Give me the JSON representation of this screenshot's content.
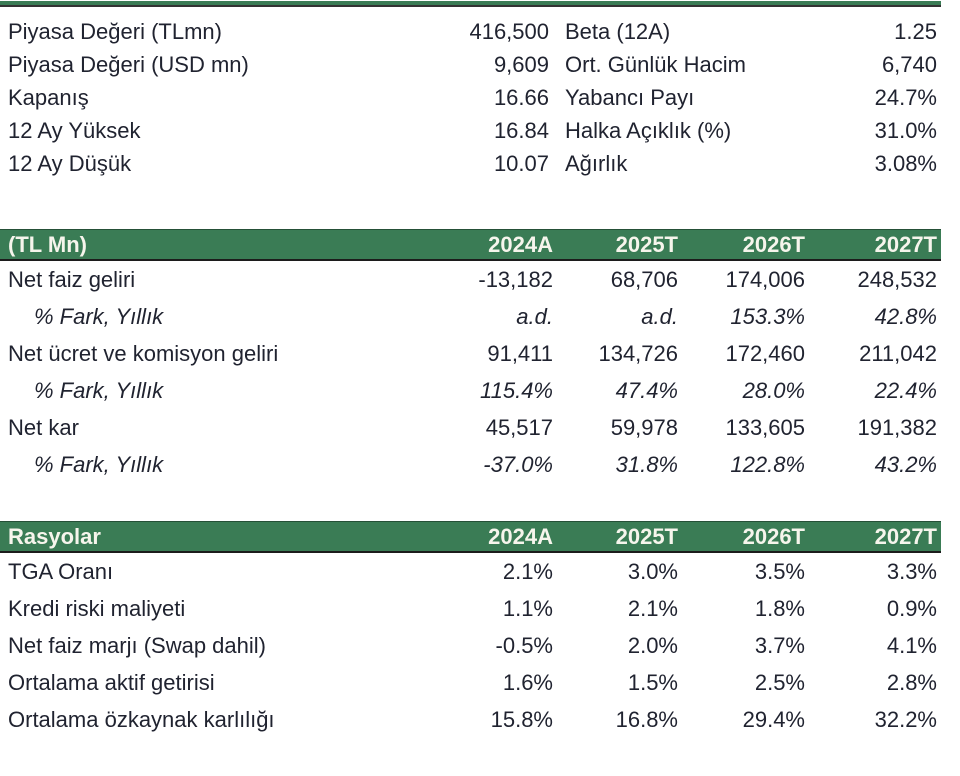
{
  "colors": {
    "accent_green": "#3A7C55",
    "header_text": "#F6F5EC",
    "body_text": "#202330",
    "rule_dark": "#333333"
  },
  "summary": {
    "left": [
      {
        "label": "Piyasa Değeri (TLmn)",
        "value": "416,500"
      },
      {
        "label": "Piyasa Değeri (USD mn)",
        "value": "9,609"
      },
      {
        "label": "Kapanış",
        "value": "16.66"
      },
      {
        "label": "12 Ay Yüksek",
        "value": "16.84"
      },
      {
        "label": "12 Ay Düşük",
        "value": "10.07"
      }
    ],
    "right": [
      {
        "label": "Beta (12A)",
        "value": "1.25"
      },
      {
        "label": "Ort. Günlük Hacim",
        "value": "6,740"
      },
      {
        "label": "Yabancı Payı",
        "value": "24.7%"
      },
      {
        "label": "Halka Açıklık (%)",
        "value": "31.0%"
      },
      {
        "label": "Ağırlık",
        "value": "3.08%"
      }
    ]
  },
  "income_table": {
    "title": "(TL Mn)",
    "columns": [
      "2024A",
      "2025T",
      "2026T",
      "2027T"
    ],
    "rows": [
      {
        "label": "Net faiz geliri",
        "values": [
          "-13,182",
          "68,706",
          "174,006",
          "248,532"
        ]
      },
      {
        "label": "% Fark, Yıllık",
        "values": [
          "a.d.",
          "a.d.",
          "153.3%",
          "42.8%"
        ]
      },
      {
        "label": "Net ücret ve komisyon geliri",
        "values": [
          "91,411",
          "134,726",
          "172,460",
          "211,042"
        ]
      },
      {
        "label": "% Fark, Yıllık",
        "values": [
          "115.4%",
          "47.4%",
          "28.0%",
          "22.4%"
        ]
      },
      {
        "label": "Net kar",
        "values": [
          "45,517",
          "59,978",
          "133,605",
          "191,382"
        ]
      },
      {
        "label": "% Fark, Yıllık",
        "values": [
          "-37.0%",
          "31.8%",
          "122.8%",
          "43.2%"
        ]
      }
    ]
  },
  "ratios_table": {
    "title": "Rasyolar",
    "columns": [
      "2024A",
      "2025T",
      "2026T",
      "2027T"
    ],
    "rows": [
      {
        "label": "TGA Oranı",
        "values": [
          "2.1%",
          "3.0%",
          "3.5%",
          "3.3%"
        ]
      },
      {
        "label": "Kredi riski maliyeti",
        "values": [
          "1.1%",
          "2.1%",
          "1.8%",
          "0.9%"
        ]
      },
      {
        "label": "Net faiz marjı (Swap dahil)",
        "values": [
          "-0.5%",
          "2.0%",
          "3.7%",
          "4.1%"
        ]
      },
      {
        "label": "Ortalama aktif getirisi",
        "values": [
          "1.6%",
          "1.5%",
          "2.5%",
          "2.8%"
        ]
      },
      {
        "label": "Ortalama özkaynak karlılığı",
        "values": [
          "15.8%",
          "16.8%",
          "29.4%",
          "32.2%"
        ]
      }
    ]
  }
}
